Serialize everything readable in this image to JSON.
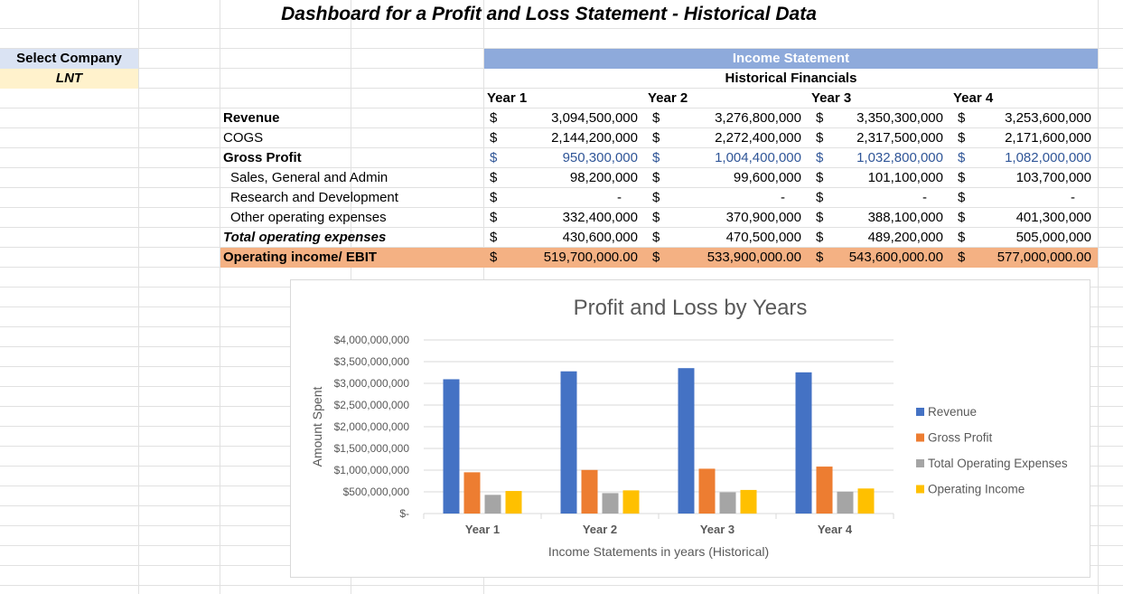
{
  "title": "Dashboard for a Profit and Loss Statement - Historical Data",
  "select_company": {
    "label": "Select Company",
    "value": "LNT"
  },
  "income_statement": {
    "header": "Income Statement",
    "subheader": "Historical Financials",
    "years": [
      "Year 1",
      "Year 2",
      "Year 3",
      "Year 4"
    ],
    "currency_symbol": "$",
    "rows": [
      {
        "label": "Revenue",
        "values": [
          "3,094,500,000",
          "3,276,800,000",
          "3,350,300,000",
          "3,253,600,000"
        ]
      },
      {
        "label": "COGS",
        "values": [
          "2,144,200,000",
          "2,272,400,000",
          "2,317,500,000",
          "2,171,600,000"
        ]
      },
      {
        "label": "Gross Profit",
        "values": [
          "950,300,000",
          "1,004,400,000",
          "1,032,800,000",
          "1,082,000,000"
        ]
      },
      {
        "label": "Sales, General and Admin",
        "values": [
          "98,200,000",
          "99,600,000",
          "101,100,000",
          "103,700,000"
        ]
      },
      {
        "label": "Research and Development",
        "values": [
          "-",
          "-",
          "-",
          "-"
        ]
      },
      {
        "label": "Other operating expenses",
        "values": [
          "332,400,000",
          "370,900,000",
          "388,100,000",
          "401,300,000"
        ]
      },
      {
        "label": "Total operating expenses",
        "values": [
          "430,600,000",
          "470,500,000",
          "489,200,000",
          "505,000,000"
        ]
      },
      {
        "label": "Operating income/ EBIT",
        "values": [
          "519,700,000.00",
          "533,900,000.00",
          "543,600,000.00",
          "577,000,000.00"
        ]
      }
    ]
  },
  "colors": {
    "header_blue": "#8eaadb",
    "select_label_bg": "#dae3f3",
    "select_value_bg": "#fff2cc",
    "ebit_bg": "#f4b183",
    "gross_profit_text": "#2f5597"
  },
  "chart_data": {
    "type": "bar",
    "title": "Profit and Loss by Years",
    "xlabel": "Income Statements in years (Historical)",
    "ylabel": "Amount Spent",
    "categories": [
      "Year 1",
      "Year 2",
      "Year 3",
      "Year 4"
    ],
    "ylim": [
      0,
      4000000000
    ],
    "yticks": [
      "$-",
      "$500,000,000",
      "$1,000,000,000",
      "$1,500,000,000",
      "$2,000,000,000",
      "$2,500,000,000",
      "$3,000,000,000",
      "$3,500,000,000",
      "$4,000,000,000"
    ],
    "grid": true,
    "legend_position": "right",
    "series": [
      {
        "name": "Revenue",
        "color": "#4472c4",
        "values": [
          3094500000,
          3276800000,
          3350300000,
          3253600000
        ]
      },
      {
        "name": "Gross Profit",
        "color": "#ed7d31",
        "values": [
          950300000,
          1004400000,
          1032800000,
          1082000000
        ]
      },
      {
        "name": "Total Operating Expenses",
        "color": "#a5a5a5",
        "values": [
          430600000,
          470500000,
          489200000,
          505000000
        ]
      },
      {
        "name": "Operating Income",
        "color": "#ffc000",
        "values": [
          519700000,
          533900000,
          543600000,
          577000000
        ]
      }
    ]
  }
}
